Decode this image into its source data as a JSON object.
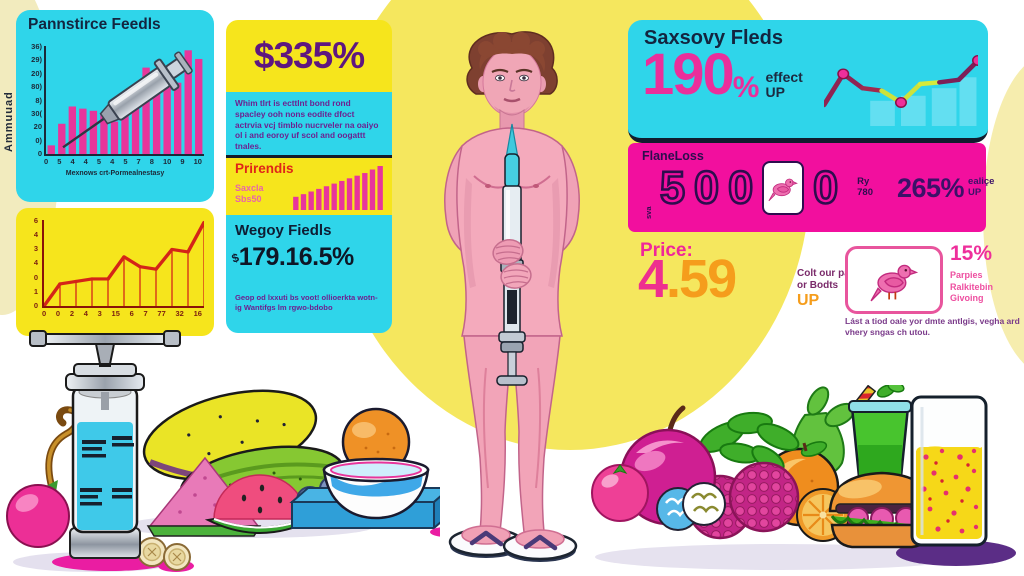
{
  "left_rail": {
    "vertical_label": "Ammuuad"
  },
  "panels": {
    "pannstirce": {
      "title": "Pannstirce Feedls"
    },
    "stat335": {
      "value": "$335%",
      "body": "Whim tlrt is ecttlnt bond rond spacley ooh nons eodite dfoct actrvia vcj timblo nucrveler na oaiyo ol i and eoroy uf scol and oogattt tnales."
    },
    "prirendis": {
      "title": "Prirendis",
      "sub_line1": "Saxcla",
      "sub_line2": "Sbs50"
    },
    "wegoy": {
      "title": "Wegoy Fiedls",
      "currency": "$",
      "value": "179.16.5%",
      "caption": "Geop od lxxuti bs voot! ollioerkta wotn-ig Wantifgs lm rgwo-bdobo"
    },
    "saxsovy": {
      "title": "Saxsovy Fleds",
      "value": "190",
      "percent": "%",
      "suffix_line1": "effect",
      "suffix_line2": "UP"
    },
    "flaneloss": {
      "label": "FlaneLoss",
      "vertical_label": "sva",
      "digit1": "5",
      "digit2": "0",
      "digit3": "0",
      "digit4": "0",
      "small_line1": "Ry",
      "small_line2": "780",
      "stat": "265%",
      "stat_suffix_line1": "ealiçe",
      "stat_suffix_line2": "UP"
    },
    "price": {
      "label": "Price:",
      "value_int": "4",
      "value_dec": ".59",
      "note_line1": "Colt our pance",
      "note_line2": "or Bodts",
      "note_line3": "UP"
    },
    "bird": {
      "stat": "15%",
      "caption_line1": "Parpies",
      "caption_line2": "Ralkitebin",
      "caption_line3": "Givoing",
      "body": "Lást a tiod oale yor dmte antlgis, vegha ard vhery sngas ch utou."
    }
  },
  "chart_data": [
    {
      "type": "bar",
      "title": "Pannstirce Feedls",
      "values": [
        4,
        14,
        22,
        21,
        20,
        19,
        15,
        22,
        27,
        40,
        36,
        34,
        33,
        48,
        44
      ],
      "bar_color": "#e8359b",
      "ylim": [
        0,
        50
      ],
      "y_ticks": [
        "36)",
        "29)",
        "20)",
        "80)",
        "8)",
        "30(",
        "20",
        "0)",
        "0"
      ],
      "x_ticks": [
        "0",
        "5",
        "4",
        "4",
        "5",
        "4",
        "5",
        "7",
        "8",
        "10",
        "9",
        "10"
      ],
      "xlabel": "Mexnows crt-Pormealnestasy"
    },
    {
      "type": "line",
      "title": "",
      "values": [
        0,
        1.8,
        2.0,
        2.2,
        2.2,
        4.0,
        3.2,
        3.0,
        4.6,
        4.4,
        6.8
      ],
      "line_color": "#d42418",
      "droplines": true,
      "ylim": [
        0,
        7
      ],
      "y_ticks": [
        "6",
        "4",
        "3",
        "4",
        "0",
        "1",
        "0"
      ],
      "x_ticks": [
        "0",
        "0",
        "2",
        "4",
        "3",
        "15",
        "6",
        "7",
        "77",
        "32",
        "16"
      ]
    },
    {
      "type": "bar",
      "title": "Prirendis",
      "values": [
        3,
        3.6,
        4.2,
        4.8,
        5.4,
        6.0,
        6.6,
        7.2,
        7.8,
        8.4,
        9.2,
        10
      ],
      "bar_color": "#e8359b",
      "ylim": [
        0,
        10
      ]
    },
    {
      "type": "line",
      "title": "Saxsovy Fleds trend",
      "values": [
        2.5,
        6.2,
        4.5,
        4.2,
        2.8,
        5.0,
        5.2,
        5.5,
        7.8
      ],
      "ylim": [
        0,
        10
      ],
      "segment_colors": [
        "#8f2453",
        "#8f2453",
        "#a02a4e",
        "#cde23a",
        "#cde23a",
        "#d6ea3a",
        "#7c2058",
        "#7c2058"
      ],
      "dot_indices": [
        1,
        4,
        8
      ],
      "dot_color": "#ee2f9b",
      "bg_bars": [
        [
          0.3,
          0.16,
          0.3
        ],
        [
          0.5,
          0.16,
          0.36
        ],
        [
          0.7,
          0.16,
          0.45
        ],
        [
          0.88,
          0.11,
          0.58
        ]
      ],
      "bg_bar_color": "#63dff1"
    }
  ]
}
